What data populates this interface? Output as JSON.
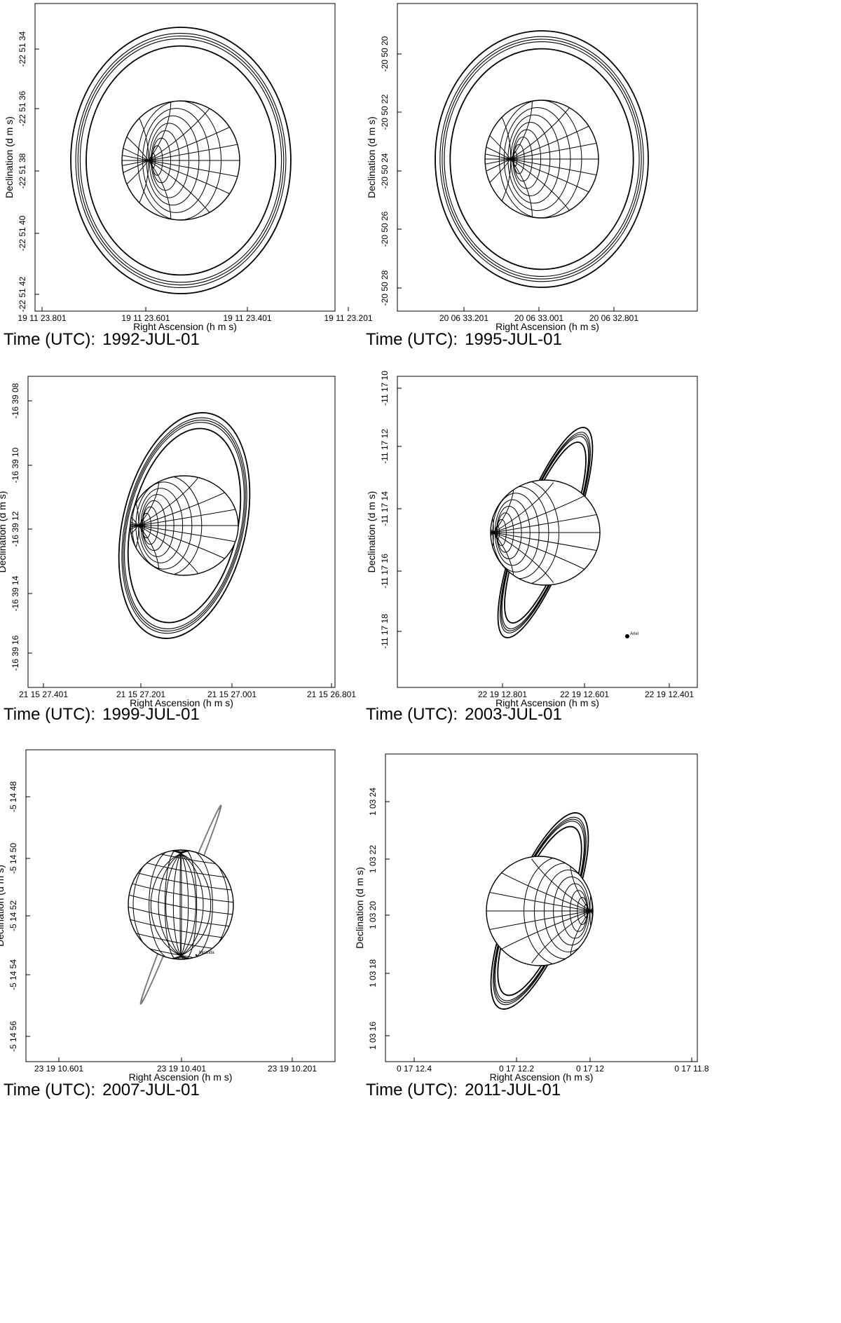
{
  "xlabel": "Right Ascension (h m s)",
  "ylabel": "Declination (d m s)",
  "caption_prefix": "Time (UTC):",
  "panels": [
    {
      "date": "1992-JUL-01",
      "xticks": [
        "19 11 23.801",
        "19 11 23.601",
        "19 11 23.401",
        "19 11 23.201"
      ],
      "yticks": [
        "-22 51 34",
        "-22 51 36",
        "-22 51 38",
        "-22 51 40",
        "-22 51 42"
      ],
      "moons": []
    },
    {
      "date": "1995-JUL-01",
      "xticks": [
        "20 06 33.201",
        "20 06 33.001",
        "20 06 32.801"
      ],
      "yticks": [
        "-20 50 20",
        "-20 50 22",
        "-20 50 24",
        "-20 50 26",
        "-20 50 28"
      ],
      "moons": []
    },
    {
      "date": "1999-JUL-01",
      "xticks": [
        "21 15 27.401",
        "21 15 27.201",
        "21 15 27.001",
        "21 15 26.801"
      ],
      "yticks": [
        "-16 39 08",
        "-16 39 10",
        "-16 39 12",
        "-16 39 14",
        "-16 39 16"
      ],
      "moons": []
    },
    {
      "date": "2003-JUL-01",
      "xticks": [
        "22 19 12.801",
        "22 19 12.601",
        "22 19 12.401"
      ],
      "yticks": [
        "-11 17 10",
        "-11 17 12",
        "-11 17 14",
        "-11 17 16",
        "-11 17 18"
      ],
      "moons": [
        "Ariel"
      ]
    },
    {
      "date": "2007-JUL-01",
      "xticks": [
        "23 19 10.601",
        "23 19 10.401",
        "23 19 10.201"
      ],
      "yticks": [
        "-5 14 48",
        "-5 14 50",
        "-5 14 52",
        "-5 14 54",
        "-5 14 56"
      ],
      "moons": [
        "Miranda"
      ]
    },
    {
      "date": "2011-JUL-01",
      "xticks": [
        "0 17 12.4",
        "0 17 12.2",
        "0 17 12",
        "0 17 11.8"
      ],
      "yticks": [
        "1 03 24",
        "1 03 22",
        "1 03 20",
        "1 03 18",
        "1 03 16"
      ],
      "moons": []
    }
  ]
}
